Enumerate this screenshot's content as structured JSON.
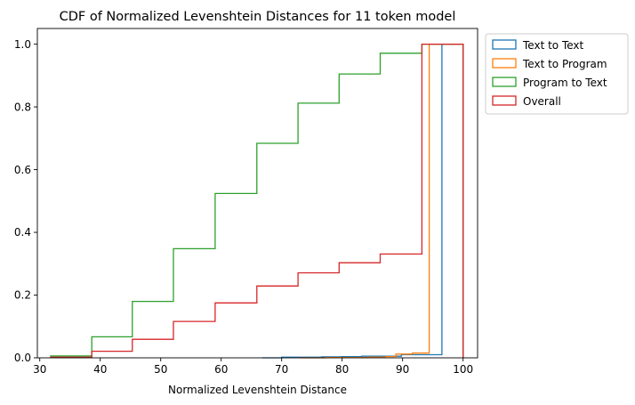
{
  "chart_data": {
    "type": "line",
    "subtype": "step-cdf",
    "title": "CDF of Normalized Levenshtein Distances for 11 token model",
    "xlabel": "Normalized Levenshtein Distance",
    "ylabel": "",
    "xlim": [
      29.6,
      102.4
    ],
    "ylim": [
      0.0,
      1.05
    ],
    "xticks": [
      30,
      40,
      50,
      60,
      70,
      80,
      90,
      100
    ],
    "yticks": [
      0.0,
      0.2,
      0.4,
      0.6,
      0.8,
      1.0
    ],
    "xtick_labels": [
      "30",
      "40",
      "50",
      "60",
      "70",
      "80",
      "90",
      "100"
    ],
    "ytick_labels": [
      "0.0",
      "0.2",
      "0.4",
      "0.6",
      "0.8",
      "1.0"
    ],
    "grid": false,
    "legend_position": "outside-upper-right",
    "series": [
      {
        "name": "Text to Text",
        "color": "#1f77b4",
        "x": [
          66.8,
          70.0,
          73.3,
          76.6,
          79.9,
          83.2,
          86.5,
          89.8,
          93.1,
          96.5,
          100.0
        ],
        "y": [
          0.0,
          0.002,
          0.002,
          0.003,
          0.004,
          0.005,
          0.005,
          0.01,
          0.01,
          1.0,
          1.0
        ]
      },
      {
        "name": "Text to Program",
        "color": "#ff7f0e",
        "x": [
          73.0,
          77.2,
          81.2,
          84.2,
          87.2,
          88.9,
          91.6,
          94.4,
          100.0
        ],
        "y": [
          0.0,
          0.001,
          0.001,
          0.002,
          0.004,
          0.012,
          0.015,
          1.0,
          1.0
        ]
      },
      {
        "name": "Program to Text",
        "color": "#2ca02c",
        "x": [
          31.8,
          38.6,
          45.3,
          52.1,
          59.0,
          65.9,
          72.7,
          79.5,
          86.3,
          93.2,
          100.0
        ],
        "y": [
          0.006,
          0.067,
          0.18,
          0.348,
          0.524,
          0.684,
          0.812,
          0.905,
          0.971,
          1.0,
          1.0
        ]
      },
      {
        "name": "Overall",
        "color": "#d62728",
        "x": [
          31.8,
          38.6,
          45.3,
          52.1,
          59.0,
          65.9,
          72.7,
          79.5,
          86.3,
          93.2,
          100.0
        ],
        "y": [
          0.002,
          0.021,
          0.059,
          0.116,
          0.175,
          0.229,
          0.271,
          0.303,
          0.331,
          1.0,
          1.0
        ]
      }
    ]
  }
}
